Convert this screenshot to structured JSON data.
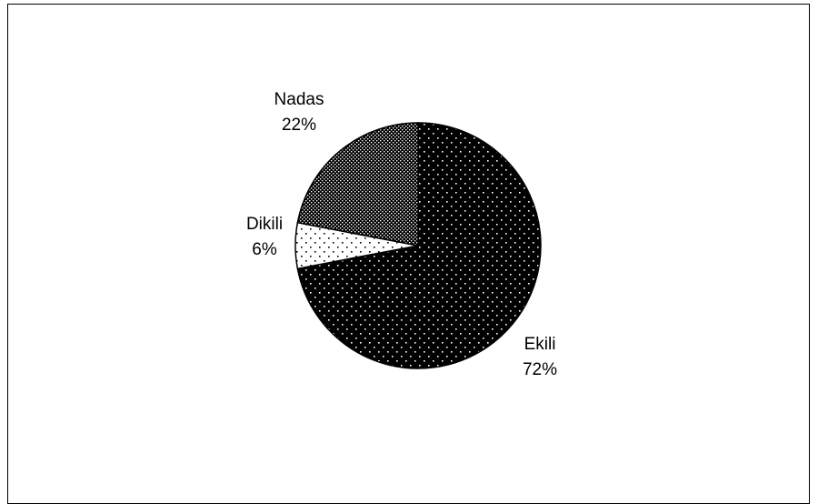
{
  "chart_data": {
    "type": "pie",
    "title": "",
    "categories": [
      "Ekili",
      "Dikili",
      "Nadas"
    ],
    "values": [
      72,
      6,
      22
    ],
    "value_labels": [
      "72%",
      "6%",
      "22%"
    ],
    "start_angle_deg": 0,
    "direction": "clockwise",
    "legend": "none",
    "slice_fills": [
      "dark-dotted",
      "light-dotted",
      "dark-cross-hatched"
    ],
    "colors": {
      "background": "#ffffff",
      "foreground": "#000000",
      "outline": "#000000"
    }
  }
}
